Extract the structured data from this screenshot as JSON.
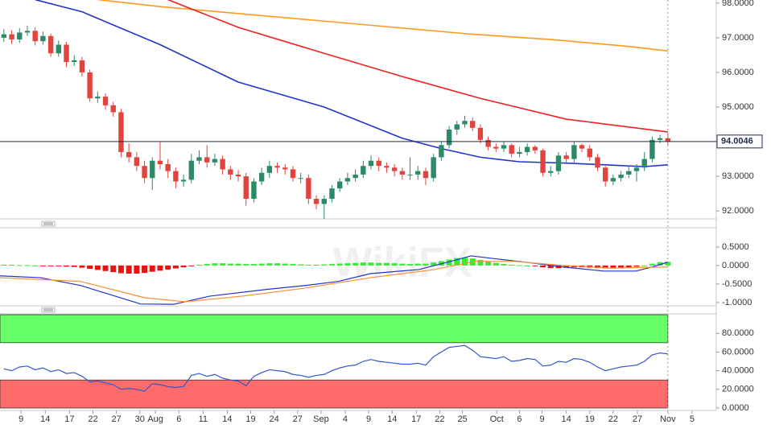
{
  "chart_data": [
    {
      "type": "candlestick",
      "watermark": "WikiFX",
      "x": [
        0,
        1,
        2,
        3,
        4,
        5,
        6,
        7,
        8,
        9,
        10,
        11,
        12,
        13,
        14,
        15,
        16,
        17,
        18,
        19,
        20,
        21,
        22,
        23,
        24,
        25,
        26,
        27,
        28,
        29,
        30,
        31,
        32,
        33,
        34,
        35,
        36,
        37,
        38,
        39,
        40,
        41,
        42,
        43,
        44,
        45,
        46,
        47,
        48,
        49,
        50,
        51,
        52,
        53,
        54,
        55,
        56,
        57,
        58,
        59,
        60,
        61,
        62,
        63,
        64,
        65,
        66,
        67,
        68,
        69,
        70,
        71,
        72,
        73,
        74,
        75,
        76,
        77,
        78,
        79,
        80,
        81,
        82,
        83,
        84,
        85
      ],
      "open": [
        97.0,
        97.1,
        96.95,
        97.15,
        97.2,
        96.9,
        97.05,
        96.55,
        96.8,
        96.3,
        96.35,
        96.0,
        95.25,
        95.3,
        95.05,
        94.85,
        93.7,
        93.55,
        93.3,
        92.95,
        93.45,
        93.35,
        93.15,
        92.85,
        92.9,
        93.45,
        93.55,
        93.4,
        93.5,
        93.2,
        93.05,
        93.0,
        92.35,
        92.85,
        93.1,
        93.3,
        93.25,
        93.2,
        92.95,
        92.95,
        92.35,
        92.2,
        92.35,
        92.65,
        92.85,
        92.95,
        93.05,
        93.3,
        93.45,
        93.3,
        93.25,
        93.15,
        93.05,
        93.05,
        93.15,
        92.95,
        93.55,
        93.9,
        94.35,
        94.5,
        94.6,
        94.4,
        94.05,
        93.85,
        93.8,
        93.9,
        93.65,
        93.7,
        93.85,
        93.75,
        93.1,
        93.15,
        93.6,
        93.5,
        93.9,
        93.8,
        93.55,
        93.25,
        92.85,
        92.95,
        93.05,
        93.15,
        93.25,
        93.5,
        94.05,
        94.1
      ],
      "high": [
        97.25,
        97.22,
        97.28,
        97.35,
        97.3,
        97.18,
        97.12,
        96.92,
        96.88,
        96.5,
        96.45,
        96.08,
        95.45,
        95.4,
        95.15,
        94.95,
        93.95,
        93.7,
        93.45,
        93.55,
        94.0,
        93.5,
        93.25,
        93.05,
        93.65,
        93.75,
        93.9,
        93.65,
        93.6,
        93.3,
        93.18,
        93.1,
        92.95,
        93.25,
        93.45,
        93.4,
        93.35,
        93.3,
        93.1,
        93.05,
        92.45,
        92.45,
        92.75,
        92.95,
        93.1,
        93.2,
        93.45,
        93.6,
        93.55,
        93.4,
        93.35,
        93.25,
        93.55,
        93.3,
        93.25,
        93.65,
        94.0,
        94.45,
        94.6,
        94.75,
        94.7,
        94.5,
        94.15,
        93.95,
        94.0,
        93.95,
        93.85,
        93.95,
        93.9,
        93.8,
        93.3,
        93.7,
        93.7,
        94.0,
        93.95,
        93.9,
        93.65,
        93.3,
        93.05,
        93.15,
        93.3,
        93.35,
        93.7,
        94.15,
        94.2,
        94.25
      ],
      "low": [
        96.88,
        96.82,
        96.85,
        97.05,
        96.78,
        96.8,
        96.45,
        96.45,
        96.15,
        96.18,
        95.88,
        95.15,
        95.12,
        94.92,
        94.72,
        93.55,
        93.4,
        93.15,
        92.8,
        92.6,
        93.2,
        92.95,
        92.65,
        92.7,
        92.8,
        93.35,
        93.25,
        93.3,
        93.05,
        92.9,
        92.85,
        92.15,
        92.25,
        92.75,
        92.95,
        93.1,
        93.05,
        92.85,
        92.8,
        92.2,
        92.05,
        91.75,
        92.25,
        92.55,
        92.75,
        92.85,
        92.95,
        93.2,
        93.15,
        93.1,
        93.0,
        92.9,
        92.9,
        92.9,
        92.75,
        92.85,
        93.45,
        93.8,
        94.2,
        94.4,
        94.3,
        93.95,
        93.75,
        93.7,
        93.7,
        93.55,
        93.55,
        93.6,
        93.65,
        93.0,
        93.0,
        93.05,
        93.4,
        93.4,
        93.7,
        93.45,
        93.15,
        92.7,
        92.75,
        92.85,
        92.95,
        92.85,
        93.15,
        93.4,
        93.95,
        93.9
      ],
      "close": [
        97.1,
        96.95,
        97.15,
        97.2,
        96.9,
        97.05,
        96.55,
        96.8,
        96.3,
        96.35,
        96.0,
        95.25,
        95.3,
        95.05,
        94.85,
        93.7,
        93.55,
        93.3,
        92.95,
        93.45,
        93.35,
        93.15,
        92.85,
        92.9,
        93.45,
        93.55,
        93.4,
        93.5,
        93.2,
        93.05,
        93.0,
        92.35,
        92.85,
        93.1,
        93.3,
        93.25,
        93.2,
        92.95,
        92.95,
        92.35,
        92.2,
        92.35,
        92.65,
        92.85,
        92.95,
        93.05,
        93.3,
        93.45,
        93.3,
        93.25,
        93.15,
        93.05,
        93.05,
        93.15,
        92.95,
        93.55,
        93.9,
        94.35,
        94.5,
        94.6,
        94.4,
        94.05,
        93.85,
        93.8,
        93.9,
        93.65,
        93.7,
        93.85,
        93.75,
        93.1,
        93.15,
        93.6,
        93.5,
        93.9,
        93.8,
        93.55,
        93.25,
        92.85,
        92.95,
        93.05,
        93.15,
        93.25,
        93.5,
        94.05,
        94.1,
        94.0
      ],
      "up_color": "#2d8a66",
      "down_color": "#e0443c",
      "moving_averages": [
        {
          "color": "#ff9a1f",
          "x": [
            12,
            20,
            30,
            40,
            50,
            60,
            70,
            80,
            85
          ],
          "values": [
            98.1,
            97.9,
            97.7,
            97.5,
            97.3,
            97.1,
            96.95,
            96.75,
            96.62
          ]
        },
        {
          "color": "#ee2222",
          "x": [
            21,
            30,
            41,
            51,
            61,
            72,
            85
          ],
          "values": [
            98.1,
            97.3,
            96.55,
            95.88,
            95.25,
            94.65,
            94.28
          ]
        },
        {
          "color": "#2233cc",
          "x": [
            4,
            10,
            20,
            30,
            41,
            51,
            56,
            61,
            66,
            72,
            77,
            82,
            85
          ],
          "values": [
            98.1,
            97.75,
            96.8,
            95.72,
            95.0,
            94.1,
            93.8,
            93.55,
            93.42,
            93.38,
            93.33,
            93.28,
            93.33
          ]
        }
      ],
      "last_price": 94.0046,
      "ylim": [
        91.77,
        98.09
      ],
      "yticks": [
        {
          "value": 92,
          "label": "92.0000"
        },
        {
          "value": 93,
          "label": "93.0000"
        },
        {
          "value": 94,
          "label": "94.0000"
        },
        {
          "value": 95,
          "label": "95.0000"
        },
        {
          "value": 96,
          "label": "96.0000"
        },
        {
          "value": 97,
          "label": "97.0000"
        },
        {
          "value": 98,
          "label": "98.0000"
        }
      ],
      "xlim": [
        -0.5,
        91.2
      ],
      "xticks": [
        {
          "value": 2.2,
          "label": "9"
        },
        {
          "value": 5.3,
          "label": "14"
        },
        {
          "value": 8.4,
          "label": "17"
        },
        {
          "value": 11.4,
          "label": "22"
        },
        {
          "value": 14.4,
          "label": "27"
        },
        {
          "value": 17.4,
          "label": "30"
        },
        {
          "value": 19.4,
          "label": "Aug"
        },
        {
          "value": 22.4,
          "label": "6"
        },
        {
          "value": 25.5,
          "label": "11"
        },
        {
          "value": 28.6,
          "label": "14"
        },
        {
          "value": 31.6,
          "label": "19"
        },
        {
          "value": 34.6,
          "label": "24"
        },
        {
          "value": 37.6,
          "label": "27"
        },
        {
          "value": 40.6,
          "label": "Sep"
        },
        {
          "value": 43.7,
          "label": "4"
        },
        {
          "value": 46.7,
          "label": "9"
        },
        {
          "value": 49.7,
          "label": "14"
        },
        {
          "value": 52.8,
          "label": "17"
        },
        {
          "value": 55.8,
          "label": "22"
        },
        {
          "value": 58.7,
          "label": "25"
        },
        {
          "value": 63.1,
          "label": "Oct"
        },
        {
          "value": 66,
          "label": "6"
        },
        {
          "value": 68.9,
          "label": "9"
        },
        {
          "value": 72,
          "label": "14"
        },
        {
          "value": 75,
          "label": "19"
        },
        {
          "value": 78,
          "label": "22"
        },
        {
          "value": 81.1,
          "label": "27"
        },
        {
          "value": 85,
          "label": "Nov"
        },
        {
          "value": 88.1,
          "label": "5"
        }
      ]
    },
    {
      "type": "macd",
      "histogram": [
        0.02,
        0.02,
        0.01,
        0.01,
        0,
        -0.01,
        -0.02,
        -0.02,
        -0.03,
        -0.04,
        -0.06,
        -0.09,
        -0.12,
        -0.15,
        -0.18,
        -0.21,
        -0.22,
        -0.22,
        -0.2,
        -0.17,
        -0.14,
        -0.11,
        -0.08,
        -0.05,
        -0.02,
        0.02,
        0.04,
        0.06,
        0.06,
        0.05,
        0.05,
        0.04,
        0.04,
        0.05,
        0.06,
        0.06,
        0.05,
        0.04,
        0.03,
        0.02,
        0.02,
        0.03,
        0.04,
        0.05,
        0.06,
        0.07,
        0.08,
        0.08,
        0.07,
        0.07,
        0.06,
        0.05,
        0.04,
        0.05,
        0.05,
        0.08,
        0.12,
        0.16,
        0.2,
        0.21,
        0.19,
        0.15,
        0.11,
        0.07,
        0.04,
        0.02,
        0.01,
        0,
        -0.02,
        -0.05,
        -0.07,
        -0.07,
        -0.06,
        -0.05,
        -0.05,
        -0.06,
        -0.07,
        -0.08,
        -0.08,
        -0.07,
        -0.05,
        -0.03,
        0,
        0.05,
        0.09,
        0.1
      ],
      "up_color": "#33ee33",
      "down_color": "#ee1111",
      "series": [
        {
          "color": "#2233cc",
          "x": [
            -0.5,
            4.7,
            9.8,
            17.5,
            21.7,
            26.3,
            33.5,
            38.6,
            42.8,
            46.9,
            53.1,
            57.2,
            59.8,
            63.4,
            67.5,
            71.6,
            76.8,
            80.9,
            83,
            85
          ],
          "values": [
            -0.28,
            -0.33,
            -0.54,
            -1.04,
            -1.05,
            -0.83,
            -0.65,
            -0.54,
            -0.43,
            -0.22,
            -0.11,
            0.11,
            0.26,
            0.17,
            0.07,
            -0.04,
            -0.15,
            -0.15,
            -0.04,
            0.09
          ]
        },
        {
          "color": "#ff8c33",
          "x": [
            -0.5,
            9.8,
            18,
            23.2,
            30.4,
            38.6,
            46.9,
            55.1,
            60.3,
            65.4,
            71.6,
            77.8,
            85
          ],
          "values": [
            -0.33,
            -0.43,
            -0.87,
            -0.98,
            -0.83,
            -0.61,
            -0.33,
            -0.11,
            0.11,
            0.11,
            0,
            -0.07,
            -0.04
          ]
        }
      ],
      "ylim": [
        -1.09,
        1.02
      ],
      "yticks": [
        {
          "value": 0.5,
          "label": "0.5000"
        },
        {
          "value": 0,
          "label": "0.0000"
        },
        {
          "value": -0.5,
          "label": "-0.5000"
        },
        {
          "value": -1,
          "label": "-1.0000"
        }
      ]
    },
    {
      "type": "rsi",
      "values": [
        42,
        40,
        44,
        45,
        41,
        43,
        39,
        41,
        37,
        38,
        34,
        28,
        29,
        27,
        25,
        20,
        21,
        20,
        18,
        26,
        25,
        23,
        22,
        23,
        35,
        37,
        34,
        36,
        32,
        30,
        29,
        24,
        34,
        38,
        41,
        40,
        39,
        36,
        35,
        33,
        35,
        36,
        40,
        43,
        45,
        46,
        50,
        52,
        50,
        49,
        48,
        47,
        47,
        48,
        46,
        55,
        60,
        65,
        66,
        67,
        62,
        55,
        54,
        53,
        55,
        50,
        51,
        53,
        52,
        45,
        46,
        50,
        49,
        53,
        52,
        49,
        44,
        40,
        42,
        44,
        45,
        46,
        50,
        57,
        59,
        58
      ],
      "color": "#3355cc",
      "zones": [
        {
          "from": 70,
          "to": 100,
          "color": "#66ff66"
        },
        {
          "from": 0,
          "to": 30,
          "color": "#ff6b6b"
        }
      ],
      "ylim": [
        -2.6,
        100.9
      ],
      "yticks": [
        {
          "value": 0,
          "label": "0.0000"
        },
        {
          "value": 20,
          "label": "20.0000"
        },
        {
          "value": 40,
          "label": "40.0000"
        },
        {
          "value": 60,
          "label": "60.0000"
        },
        {
          "value": 80,
          "label": "80.0000"
        }
      ]
    }
  ]
}
